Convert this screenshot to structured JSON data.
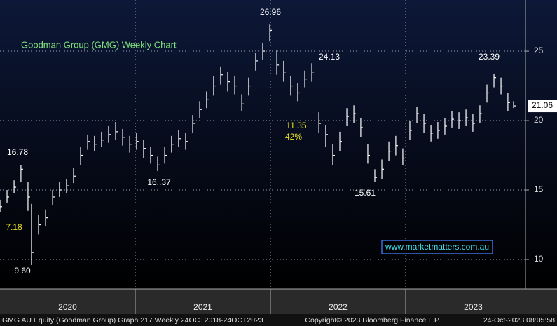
{
  "chart_data": {
    "type": "ohlc",
    "title": "Goodman Group (GMG) Weekly Chart",
    "x": [
      2020.0,
      2020.052,
      2020.104,
      2020.155,
      2020.207,
      2020.233,
      2020.285,
      2020.337,
      2020.389,
      2020.44,
      2020.492,
      2020.544,
      2020.596,
      2020.648,
      2020.699,
      2020.751,
      2020.803,
      2020.855,
      2020.907,
      2020.959,
      2021.01,
      2021.062,
      2021.114,
      2021.166,
      2021.218,
      2021.269,
      2021.321,
      2021.373,
      2021.425,
      2021.477,
      2021.528,
      2021.58,
      2021.632,
      2021.684,
      2021.736,
      2021.788,
      2021.839,
      2021.891,
      2021.943,
      2021.995,
      2022.047,
      2022.098,
      2022.15,
      2022.202,
      2022.254,
      2022.306,
      2022.358,
      2022.409,
      2022.461,
      2022.513,
      2022.565,
      2022.617,
      2022.668,
      2022.72,
      2022.772,
      2022.824,
      2022.876,
      2022.927,
      2022.979,
      2023.031,
      2023.083,
      2023.135,
      2023.187,
      2023.238,
      2023.29,
      2023.342,
      2023.394,
      2023.446,
      2023.497,
      2023.549,
      2023.601,
      2023.653,
      2023.705,
      2023.756,
      2023.798
    ],
    "high": [
      14.3,
      15.0,
      15.7,
      16.78,
      15.6,
      14.0,
      13.2,
      13.6,
      15.0,
      15.6,
      15.8,
      16.6,
      18.1,
      19.0,
      18.9,
      19.2,
      19.6,
      19.9,
      19.4,
      18.9,
      19.1,
      18.6,
      18.1,
      17.4,
      18.1,
      18.9,
      19.3,
      19.1,
      20.4,
      21.4,
      22.1,
      23.2,
      23.9,
      23.5,
      23.2,
      21.9,
      23.1,
      24.9,
      25.6,
      26.96,
      25.1,
      24.3,
      23.2,
      22.7,
      23.6,
      24.13,
      20.6,
      19.7,
      18.3,
      19.2,
      20.9,
      21.1,
      20.2,
      18.3,
      16.5,
      17.2,
      18.5,
      18.9,
      18.0,
      20.0,
      21.0,
      20.5,
      19.7,
      19.9,
      20.2,
      20.7,
      20.6,
      20.8,
      20.5,
      21.1,
      22.6,
      23.39,
      23.1,
      22.0,
      21.4
    ],
    "low": [
      13.4,
      14.1,
      14.8,
      15.6,
      13.5,
      9.6,
      11.8,
      12.4,
      13.9,
      14.5,
      14.8,
      15.5,
      16.8,
      17.9,
      17.8,
      18.1,
      18.4,
      18.6,
      18.2,
      17.7,
      17.9,
      17.3,
      16.9,
      16.37,
      16.9,
      17.7,
      18.1,
      17.9,
      19.1,
      20.2,
      20.9,
      21.8,
      22.6,
      22.1,
      21.9,
      20.7,
      21.8,
      23.6,
      24.4,
      25.7,
      23.3,
      22.8,
      21.8,
      21.4,
      22.4,
      22.8,
      19.1,
      18.1,
      16.8,
      17.8,
      19.6,
      19.8,
      18.8,
      16.9,
      15.61,
      15.8,
      17.1,
      17.5,
      16.8,
      18.6,
      19.8,
      19.1,
      18.5,
      18.7,
      19.0,
      19.5,
      19.4,
      19.6,
      19.2,
      19.8,
      21.3,
      22.4,
      21.9,
      20.7,
      20.9
    ],
    "close": [
      13.8,
      14.5,
      15.2,
      16.5,
      14.5,
      10.5,
      12.5,
      13.0,
      14.5,
      15.0,
      15.3,
      16.0,
      17.5,
      18.5,
      18.3,
      18.6,
      19.0,
      19.2,
      18.8,
      18.3,
      18.5,
      18.0,
      17.5,
      16.8,
      17.5,
      18.3,
      18.7,
      18.5,
      19.8,
      20.8,
      21.5,
      22.5,
      23.3,
      22.8,
      22.5,
      21.2,
      22.5,
      24.3,
      25.0,
      26.5,
      24.0,
      23.5,
      22.5,
      22.0,
      23.0,
      23.5,
      19.8,
      19.0,
      17.5,
      18.5,
      20.3,
      20.5,
      19.5,
      17.5,
      15.9,
      16.5,
      17.8,
      18.2,
      17.3,
      19.3,
      20.5,
      19.8,
      19.1,
      19.3,
      19.6,
      20.1,
      20.0,
      20.2,
      19.8,
      20.5,
      22.0,
      23.1,
      22.5,
      21.3,
      21.06
    ],
    "color": "#ffffff",
    "xlim": [
      2020.0,
      2023.886
    ],
    "xticks": [
      {
        "value": 2020.5,
        "label": "2020"
      },
      {
        "value": 2021.5,
        "label": "2021"
      },
      {
        "value": 2022.5,
        "label": "2022"
      },
      {
        "value": 2023.5,
        "label": "2023"
      }
    ],
    "xgrid": [
      2021,
      2022,
      2023
    ],
    "ylim": [
      7.88,
      28.69
    ],
    "yticks": [
      10,
      15,
      20,
      25
    ],
    "grid": true,
    "last_price": 21.06,
    "annotations": [
      "26.96",
      "24.13",
      "23.39",
      "16.78",
      "16..37",
      "15.61",
      "9.60",
      "7.18",
      "11.35",
      "42%"
    ],
    "watermark": "www.marketmatters.com.au",
    "footer": [
      "GMG AU Equity (Goodman Group) Graph 217  Weekly 24OCT2018-24OCT2023",
      "Copyright© 2023 Bloomberg Finance L.P.",
      "24-Oct-2023 08:05:58"
    ]
  }
}
